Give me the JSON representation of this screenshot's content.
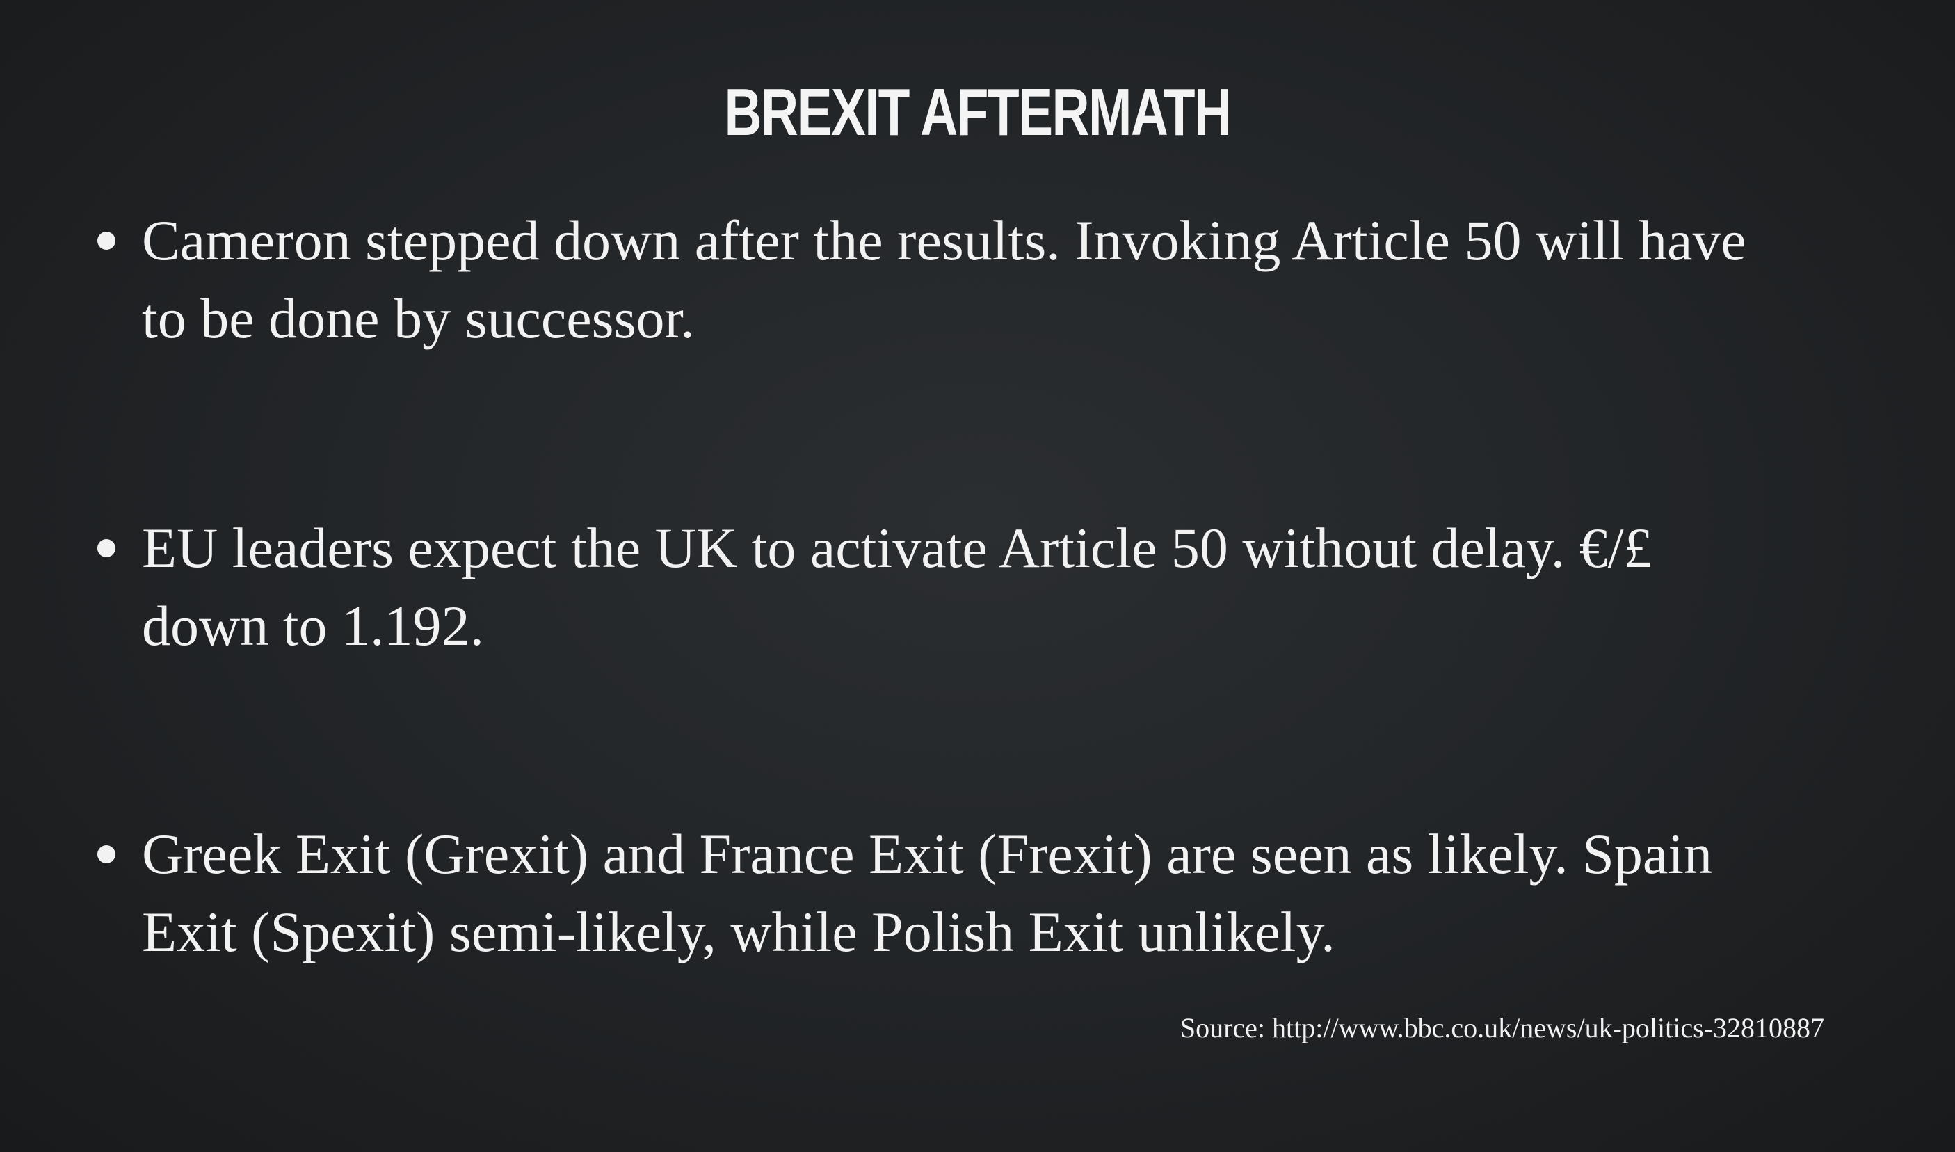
{
  "slide": {
    "title": "BREXIT AFTERMATH",
    "bullets": [
      {
        "line1": "Cameron stepped down after the results. Invoking Article 50 will have",
        "line2": "to be done by successor."
      },
      {
        "line1": "EU leaders expect the UK to activate Article 50 without delay. €/£",
        "line2": "down to 1.192."
      },
      {
        "line1": "Greek Exit (Grexit) and France Exit (Frexit) are seen as likely. Spain",
        "line2": "Exit (Spexit) semi-likely, while Polish Exit unlikely."
      }
    ],
    "source": "Source: http://www.bbc.co.uk/news/uk-politics-32810887"
  },
  "colors": {
    "background": "#222528",
    "text": "#f2f2f2"
  }
}
